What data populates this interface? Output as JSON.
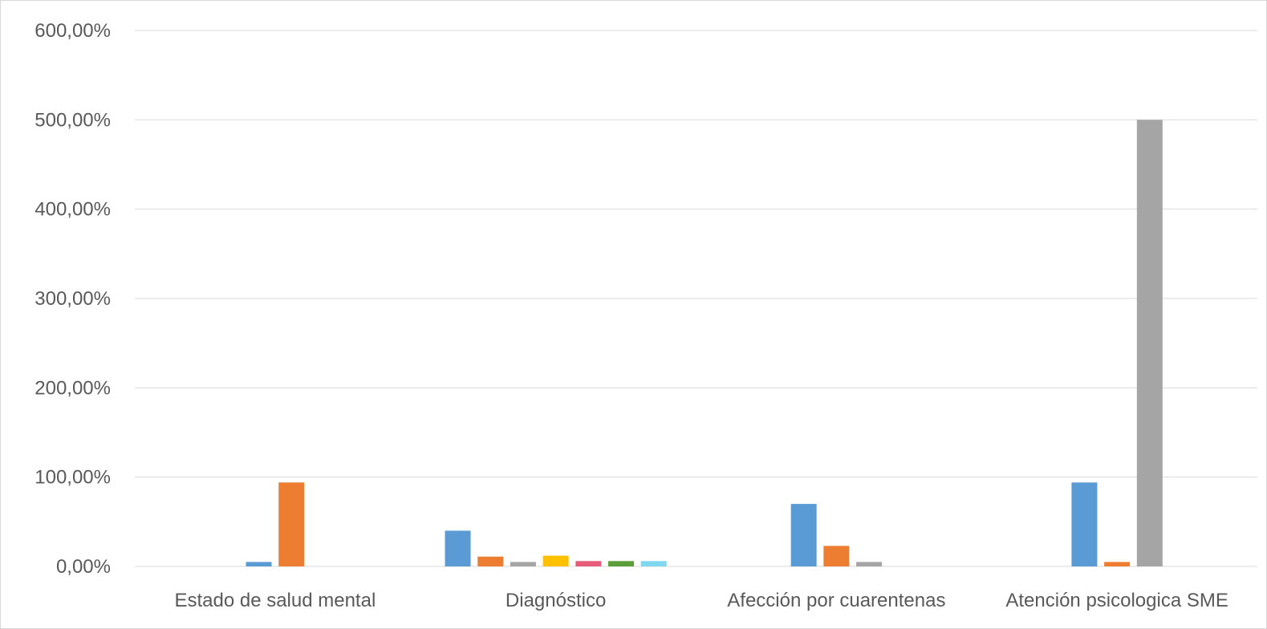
{
  "chart_data": {
    "type": "bar",
    "title": "",
    "xlabel": "",
    "ylabel": "",
    "ylim": [
      0,
      600
    ],
    "y_ticks": [
      0,
      100,
      200,
      300,
      400,
      500,
      600
    ],
    "y_tick_labels": [
      "0,00%",
      "100,00%",
      "200,00%",
      "300,00%",
      "400,00%",
      "500,00%",
      "600,00%"
    ],
    "grid": true,
    "legend": "none",
    "categories": [
      "Estado de salud mental",
      "Diagnóstico",
      "Afección por cuarentenas",
      "Atención psicologica SME"
    ],
    "series_colors": [
      "#5b9bd5",
      "#ed7d31",
      "#a5a5a5",
      "#ffc000",
      "#e75b7a",
      "#5b9e3a",
      "#7fd8f0"
    ],
    "series": [
      {
        "values": [
          5,
          40,
          70,
          94
        ]
      },
      {
        "values": [
          94,
          11,
          23,
          5
        ]
      },
      {
        "values": [
          0,
          5,
          5,
          500
        ]
      },
      {
        "values": [
          0,
          12,
          0,
          0
        ]
      },
      {
        "values": [
          0,
          6,
          0,
          0
        ]
      },
      {
        "values": [
          0,
          6,
          0,
          0
        ]
      },
      {
        "values": [
          0,
          6,
          0,
          0
        ]
      }
    ]
  }
}
